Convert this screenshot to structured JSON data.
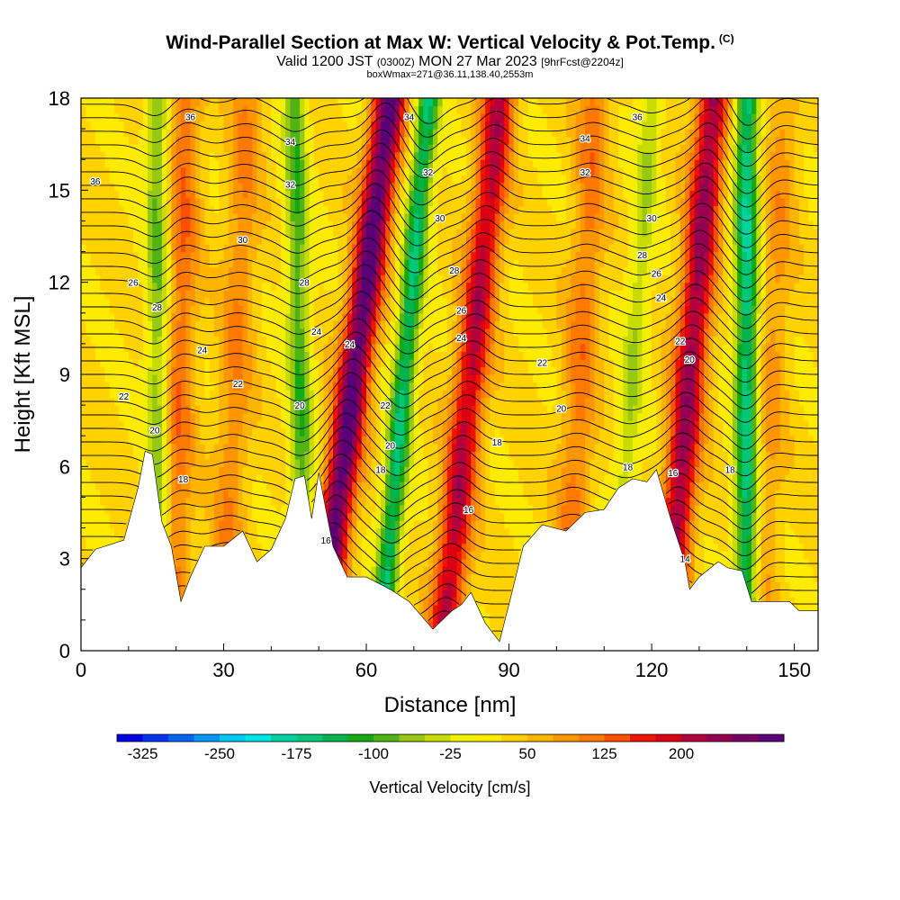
{
  "header": {
    "title": "Wind-Parallel Section at Max W: Vertical Velocity & Pot.Temp.",
    "copyright": "(C)",
    "valid_prefix": "Valid 1200 JST",
    "valid_utc": "(0300Z)",
    "valid_date": "MON 27 Mar 2023",
    "forecast": "[9hrFcst@2204z]",
    "box": "boxWmax=271@36.11,138.40,2553m"
  },
  "colorbar": {
    "label": "Vertical Velocity [cm/s]",
    "tick_labels": [
      "-325",
      "-250",
      "-175",
      "-100",
      "-25",
      "50",
      "125",
      "200"
    ],
    "colors": [
      "#0000e6",
      "#0032f0",
      "#0064f5",
      "#0096fa",
      "#00c8fa",
      "#00e6e6",
      "#00d2a0",
      "#00c878",
      "#00b450",
      "#14aa14",
      "#50b414",
      "#96c814",
      "#c8dc00",
      "#f0f000",
      "#ffeb00",
      "#ffd200",
      "#ffb400",
      "#ff9600",
      "#ff7800",
      "#ff5000",
      "#f01400",
      "#dc0014",
      "#b4003c",
      "#960050",
      "#780064",
      "#5a0078"
    ]
  },
  "chart_data": {
    "type": "heatmap",
    "title": "Wind-Parallel Section at Max W: Vertical Velocity & Pot.Temp.",
    "xlabel": "Distance [nm]",
    "ylabel": "Height [Kft MSL]",
    "xlim": [
      0,
      155
    ],
    "ylim": [
      0,
      18
    ],
    "xticks": [
      0,
      30,
      60,
      90,
      120,
      150
    ],
    "yticks": [
      0,
      3,
      6,
      9,
      12,
      15,
      18
    ],
    "fill_variable": "Vertical Velocity [cm/s]",
    "fill_range": [
      -325,
      250
    ],
    "contour_variable": "Potential Temperature",
    "contour_labels": [
      {
        "x": 9,
        "y": 8.3,
        "text": "22"
      },
      {
        "x": 15.5,
        "y": 7.2,
        "text": "20"
      },
      {
        "x": 21.5,
        "y": 5.6,
        "text": "18"
      },
      {
        "x": 11,
        "y": 12.0,
        "text": "26"
      },
      {
        "x": 16,
        "y": 11.2,
        "text": "28"
      },
      {
        "x": 25.5,
        "y": 9.8,
        "text": "24"
      },
      {
        "x": 33,
        "y": 8.7,
        "text": "22"
      },
      {
        "x": 34,
        "y": 13.4,
        "text": "30"
      },
      {
        "x": 23,
        "y": 17.4,
        "text": "36"
      },
      {
        "x": 44,
        "y": 16.6,
        "text": "34"
      },
      {
        "x": 44,
        "y": 15.2,
        "text": "32"
      },
      {
        "x": 3,
        "y": 15.3,
        "text": "36"
      },
      {
        "x": 47,
        "y": 12.0,
        "text": "28"
      },
      {
        "x": 49.5,
        "y": 10.4,
        "text": "24"
      },
      {
        "x": 46,
        "y": 8.0,
        "text": "20"
      },
      {
        "x": 51.5,
        "y": 3.6,
        "text": "16"
      },
      {
        "x": 56.5,
        "y": 10.0,
        "text": "24"
      },
      {
        "x": 64,
        "y": 8.0,
        "text": "22"
      },
      {
        "x": 65,
        "y": 6.7,
        "text": "20"
      },
      {
        "x": 63,
        "y": 5.9,
        "text": "18"
      },
      {
        "x": 69,
        "y": 17.4,
        "text": "34"
      },
      {
        "x": 73,
        "y": 15.6,
        "text": "32"
      },
      {
        "x": 75.5,
        "y": 14.1,
        "text": "30"
      },
      {
        "x": 78.5,
        "y": 12.4,
        "text": "28"
      },
      {
        "x": 80,
        "y": 11.1,
        "text": "26"
      },
      {
        "x": 80,
        "y": 10.2,
        "text": "24"
      },
      {
        "x": 81.5,
        "y": 4.6,
        "text": "16"
      },
      {
        "x": 87.5,
        "y": 6.8,
        "text": "18"
      },
      {
        "x": 97,
        "y": 9.4,
        "text": "22"
      },
      {
        "x": 101,
        "y": 7.9,
        "text": "20"
      },
      {
        "x": 106,
        "y": 16.7,
        "text": "34"
      },
      {
        "x": 106,
        "y": 15.6,
        "text": "32"
      },
      {
        "x": 117,
        "y": 17.4,
        "text": "36"
      },
      {
        "x": 120,
        "y": 14.1,
        "text": "30"
      },
      {
        "x": 118,
        "y": 12.9,
        "text": "28"
      },
      {
        "x": 121,
        "y": 12.3,
        "text": "26"
      },
      {
        "x": 122,
        "y": 11.5,
        "text": "24"
      },
      {
        "x": 126,
        "y": 10.1,
        "text": "22"
      },
      {
        "x": 128,
        "y": 9.5,
        "text": "20"
      },
      {
        "x": 136.5,
        "y": 5.9,
        "text": "18"
      },
      {
        "x": 115,
        "y": 6.0,
        "text": "18"
      },
      {
        "x": 124.5,
        "y": 5.8,
        "text": "16"
      },
      {
        "x": 127,
        "y": 3.0,
        "text": "14"
      }
    ],
    "terrain_height_kft": [
      [
        0,
        2.7
      ],
      [
        3,
        3.3
      ],
      [
        9,
        3.6
      ],
      [
        12,
        5.3
      ],
      [
        13.5,
        6.5
      ],
      [
        15,
        6.4
      ],
      [
        17,
        4.2
      ],
      [
        19,
        3.4
      ],
      [
        21,
        1.6
      ],
      [
        23,
        2.4
      ],
      [
        26,
        3.4
      ],
      [
        30,
        3.4
      ],
      [
        34,
        3.9
      ],
      [
        37,
        2.9
      ],
      [
        40,
        3.3
      ],
      [
        43,
        4.3
      ],
      [
        45,
        5.6
      ],
      [
        47,
        5.7
      ],
      [
        48.5,
        4.3
      ],
      [
        50,
        5.8
      ],
      [
        53,
        3.4
      ],
      [
        56,
        2.4
      ],
      [
        60,
        2.4
      ],
      [
        65,
        2.0
      ],
      [
        69,
        1.6
      ],
      [
        74,
        0.7
      ],
      [
        78,
        1.3
      ],
      [
        80,
        1.5
      ],
      [
        82,
        1.9
      ],
      [
        85,
        0.9
      ],
      [
        88,
        0.3
      ],
      [
        90,
        1.5
      ],
      [
        93,
        3.4
      ],
      [
        97,
        4.1
      ],
      [
        102,
        3.9
      ],
      [
        106,
        4.5
      ],
      [
        110,
        4.6
      ],
      [
        113,
        5.3
      ],
      [
        116,
        5.6
      ],
      [
        119,
        5.5
      ],
      [
        121,
        5.9
      ],
      [
        124,
        4.3
      ],
      [
        127,
        2.9
      ],
      [
        128,
        2.0
      ],
      [
        130,
        2.4
      ],
      [
        134,
        2.9
      ],
      [
        136,
        2.7
      ],
      [
        139,
        2.6
      ],
      [
        141,
        1.6
      ],
      [
        144,
        1.6
      ],
      [
        149,
        1.6
      ],
      [
        151,
        1.3
      ],
      [
        155,
        1.3
      ]
    ],
    "updraft_bands": [
      {
        "x_top": 22,
        "x_bot": 19,
        "strength": 80
      },
      {
        "x_top": 35,
        "x_bot": 30,
        "strength": 60
      },
      {
        "x_top": 65,
        "x_bot": 50,
        "strength": 230
      },
      {
        "x_top": 88,
        "x_bot": 76,
        "strength": 160
      },
      {
        "x_top": 108,
        "x_bot": 102,
        "strength": 70
      },
      {
        "x_top": 133,
        "x_bot": 123,
        "strength": 180
      },
      {
        "x_top": 148,
        "x_bot": 142,
        "strength": 50
      }
    ],
    "downdraft_bands": [
      {
        "x_top": 16,
        "x_bot": 16.5,
        "strength": -100
      },
      {
        "x_top": 45,
        "x_bot": 47,
        "strength": -110
      },
      {
        "x_top": 73,
        "x_bot": 63,
        "strength": -160
      },
      {
        "x_top": 120,
        "x_bot": 112,
        "strength": -70
      },
      {
        "x_top": 140,
        "x_bot": 140,
        "strength": -180
      }
    ]
  }
}
